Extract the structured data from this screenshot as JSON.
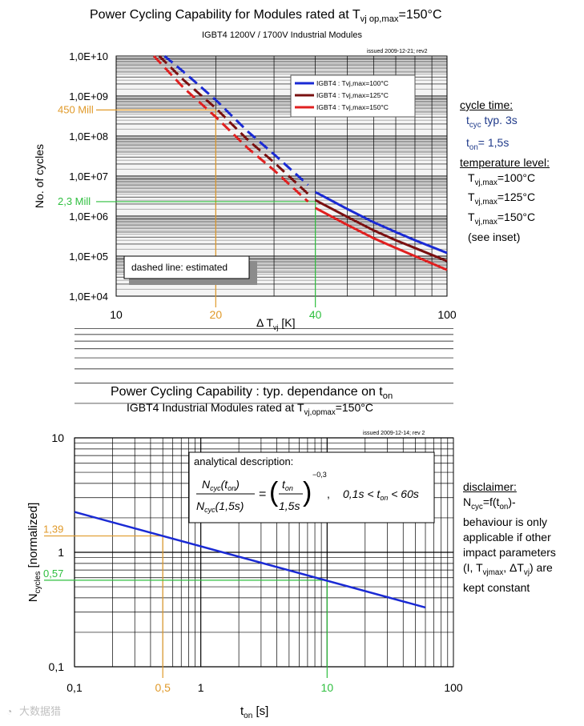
{
  "charts": [
    {
      "title_main": "Power Cycling Capability for Modules rated at T",
      "title_sub": "vj op,max",
      "title_tail": "=150°C",
      "subtitle": "IGBT4 1200V / 1700V Industrial Modules",
      "issued": "issued 2009-12-21; rev2",
      "note": "dashed line: estimated"
    },
    {
      "title_main": "Power Cycling Capability : typ. dependance on t",
      "title_sub": "on",
      "subtitle_main": "IGBT4 Industrial Modules rated at T",
      "subtitle_sub": "vj,opmax",
      "subtitle_tail": "=150°C",
      "issued": "issued 2009-12-14; rev 2",
      "formula_title": "analytical description:",
      "formula_exponent": "−0,3",
      "formula_range": "0,1s < t",
      "formula_range_sub": "on",
      "formula_range_tail": " < 60s"
    }
  ],
  "side_panel_top": {
    "cycle_time": "cycle time:",
    "tcyc_a": "t",
    "tcyc_sub": "cyc",
    "tcyc_b": " typ. 3s",
    "ton_a": "t",
    "ton_sub": "on",
    "ton_b": "= 1,5s",
    "temp_level": "temperature level:",
    "t1a": "T",
    "t1s": "vj,max",
    "t1b": "=100°C",
    "t2a": "T",
    "t2s": "vj,max",
    "t2b": "=125°C",
    "t3a": "T",
    "t3s": "vj,max",
    "t3b": "=150°C",
    "inset": "(see inset)"
  },
  "side_panel_bottom": {
    "disclaimer": "disclaimer:",
    "n_a": "N",
    "n_sub": "cyc",
    "n_b": "=f(t",
    "n_sub2": "on",
    "n_c": ")-",
    "l2": "behaviour is only",
    "l3": "applicable if other",
    "l4": "impact parameters",
    "l5a": "(I, T",
    "l5s": "vjmax",
    "l5b": ", ΔT",
    "l5s2": "vj",
    "l5c": ") are",
    "l6": "kept constant"
  },
  "watermark": "大数据猎",
  "chart_data": [
    {
      "type": "line",
      "xscale": "log",
      "yscale": "log",
      "xlim": [
        10,
        100
      ],
      "ylim": [
        10000,
        10000000000
      ],
      "xlabel": "Δ T",
      "xlabel_sub": "vj",
      "xlabel_tail": " [K]",
      "ylabel": "No. of cycles",
      "xticks": [
        {
          "value": 10,
          "label": "10",
          "color": "#000000"
        },
        {
          "value": 20,
          "label": "20",
          "color": "#e09a2a"
        },
        {
          "value": 40,
          "label": "40",
          "color": "#2fbf3f"
        },
        {
          "value": 100,
          "label": "100",
          "color": "#000000"
        }
      ],
      "yticks": [
        {
          "value": 10000,
          "label": "1,0E+04"
        },
        {
          "value": 100000,
          "label": "1,0E+05"
        },
        {
          "value": 1000000,
          "label": "1,0E+06"
        },
        {
          "value": 10000000,
          "label": "1,0E+07"
        },
        {
          "value": 100000000,
          "label": "1,0E+08"
        },
        {
          "value": 1000000000,
          "label": "1,0E+09"
        },
        {
          "value": 10000000000,
          "label": "1,0E+10"
        }
      ],
      "legend_position": "top-right",
      "series": [
        {
          "name": "IGBT4 : Tvj,max=100°C",
          "color": "#1a2ad4",
          "dashed": {
            "x": [
              14.0,
              16,
              20,
              25,
              30,
              38
            ],
            "y": [
              10000000000,
              4000000000,
              800000000,
              130000000,
              35000000,
              6000000
            ]
          },
          "solid": {
            "x": [
              40,
              50,
              60,
              70,
              80,
              100
            ],
            "y": [
              4000000,
              1500000,
              700000,
              400000,
              250000,
              120000
            ]
          }
        },
        {
          "name": "IGBT4 : Tvj,max=125°C",
          "color": "#7a1010",
          "dashed": {
            "x": [
              13.5,
              16,
              20,
              25,
              30,
              38
            ],
            "y": [
              10000000000,
              2500000000,
              500000000,
              80000000,
              22000000,
              3600000
            ]
          },
          "solid": {
            "x": [
              40,
              50,
              60,
              70,
              80,
              100
            ],
            "y": [
              2500000,
              950000,
              440000,
              250000,
              160000,
              75000
            ]
          }
        },
        {
          "name": "IGBT4 : Tvj,max=150°C",
          "color": "#e02020",
          "dashed": {
            "x": [
              13.0,
              16,
              20,
              25,
              30,
              38
            ],
            "y": [
              10000000000,
              1600000000,
              300000000,
              50000000,
              14000000,
              2300000
            ]
          },
          "solid": {
            "x": [
              40,
              50,
              60,
              70,
              80,
              100
            ],
            "y": [
              1600000,
              600000,
              280000,
              160000,
              100000,
              45000
            ]
          }
        }
      ],
      "annotations": [
        {
          "label": "450 Mill",
          "x": 20,
          "y": 450000000,
          "color": "#e09a2a"
        },
        {
          "label": "2,3 Mill",
          "x": 40,
          "y": 2300000,
          "color": "#2fbf3f"
        }
      ]
    },
    {
      "type": "line",
      "xscale": "log",
      "yscale": "log",
      "xlim": [
        0.1,
        100
      ],
      "ylim": [
        0.1,
        10
      ],
      "xlabel": "t",
      "xlabel_sub": "on",
      "xlabel_tail": " [s]",
      "ylabel": "N",
      "ylabel_sub": "cycles",
      "ylabel_tail": " [normalized]",
      "xticks": [
        {
          "value": 0.1,
          "label": "0,1",
          "color": "#000000"
        },
        {
          "value": 0.5,
          "label": "0,5",
          "color": "#e09a2a"
        },
        {
          "value": 1,
          "label": "1",
          "color": "#000000"
        },
        {
          "value": 10,
          "label": "10",
          "color": "#2fbf3f"
        },
        {
          "value": 100,
          "label": "100",
          "color": "#000000"
        }
      ],
      "yticks": [
        {
          "value": 0.1,
          "label": "0,1"
        },
        {
          "value": 1,
          "label": "1"
        },
        {
          "value": 10,
          "label": "10"
        }
      ],
      "series": [
        {
          "name": "N_cyc(t_on)/N_cyc(1,5s)",
          "color": "#1a2ad4",
          "x": [
            0.1,
            60
          ],
          "y": [
            2.25,
            0.33
          ]
        }
      ],
      "annotations": [
        {
          "label": "1,39",
          "x": 0.5,
          "y": 1.39,
          "color": "#e09a2a"
        },
        {
          "label": "0,57",
          "x": 10,
          "y": 0.57,
          "color": "#2fbf3f"
        }
      ]
    }
  ]
}
